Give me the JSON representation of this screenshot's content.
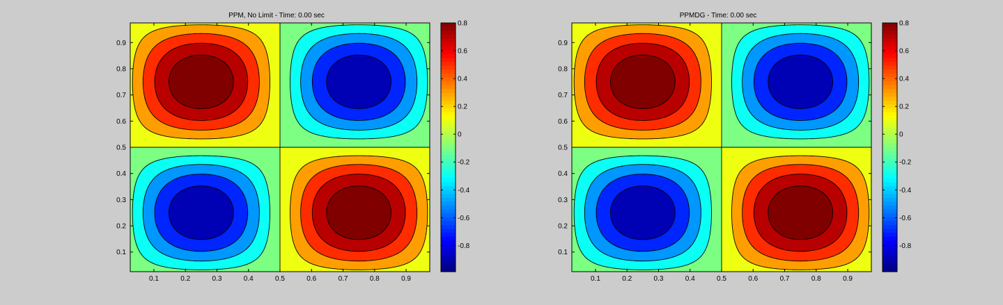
{
  "figure": {
    "background": "#cccccc"
  },
  "chart_data": [
    {
      "type": "contourf",
      "title": "PPM, No Limit - Time: 0.00 sec",
      "function": "-sin(2*pi*x)*sin(2*pi*y)",
      "x_range": [
        0.025,
        0.975
      ],
      "y_range": [
        0.025,
        0.975
      ],
      "xticks": [
        0.1,
        0.2,
        0.3,
        0.4,
        0.5,
        0.6,
        0.7,
        0.8,
        0.9
      ],
      "yticks": [
        0.1,
        0.2,
        0.3,
        0.4,
        0.5,
        0.6,
        0.7,
        0.8,
        0.9
      ],
      "xtick_labels": [
        "0.1",
        "0.2",
        "0.3",
        "0.4",
        "0.5",
        "0.6",
        "0.7",
        "0.8",
        "0.9"
      ],
      "ytick_labels": [
        "0.1",
        "0.2",
        "0.3",
        "0.4",
        "0.5",
        "0.6",
        "0.7",
        "0.8",
        "0.9"
      ],
      "levels": [
        -0.8,
        -0.6,
        -0.4,
        -0.2,
        0,
        0.2,
        0.4,
        0.6,
        0.8
      ],
      "colorbar": {
        "range": [
          -0.988,
          0.8
        ],
        "ticks": [
          0.8,
          0.6,
          0.4,
          0.2,
          0,
          -0.2,
          -0.4,
          -0.6,
          -0.8
        ],
        "tick_labels": [
          "0.8",
          "0.6",
          "0.4",
          "0.2",
          "0",
          "-0.2",
          "-0.4",
          "-0.6",
          "-0.8"
        ],
        "colormap": "jet"
      }
    },
    {
      "type": "contourf",
      "title": "PPMDG - Time: 0.00 sec",
      "function": "-sin(2*pi*x)*sin(2*pi*y)",
      "x_range": [
        0.025,
        0.975
      ],
      "y_range": [
        0.025,
        0.975
      ],
      "xticks": [
        0.1,
        0.2,
        0.3,
        0.4,
        0.5,
        0.6,
        0.7,
        0.8,
        0.9
      ],
      "yticks": [
        0.1,
        0.2,
        0.3,
        0.4,
        0.5,
        0.6,
        0.7,
        0.8,
        0.9
      ],
      "xtick_labels": [
        "0.1",
        "0.2",
        "0.3",
        "0.4",
        "0.5",
        "0.6",
        "0.7",
        "0.8",
        "0.9"
      ],
      "ytick_labels": [
        "0.1",
        "0.2",
        "0.3",
        "0.4",
        "0.5",
        "0.6",
        "0.7",
        "0.8",
        "0.9"
      ],
      "levels": [
        -0.8,
        -0.6,
        -0.4,
        -0.2,
        0,
        0.2,
        0.4,
        0.6,
        0.8
      ],
      "colorbar": {
        "range": [
          -0.988,
          0.8
        ],
        "ticks": [
          0.8,
          0.6,
          0.4,
          0.2,
          0,
          -0.2,
          -0.4,
          -0.6,
          -0.8
        ],
        "tick_labels": [
          "0.8",
          "0.6",
          "0.4",
          "0.2",
          "0",
          "-0.2",
          "-0.4",
          "-0.6",
          "-0.8"
        ],
        "colormap": "jet"
      }
    }
  ]
}
